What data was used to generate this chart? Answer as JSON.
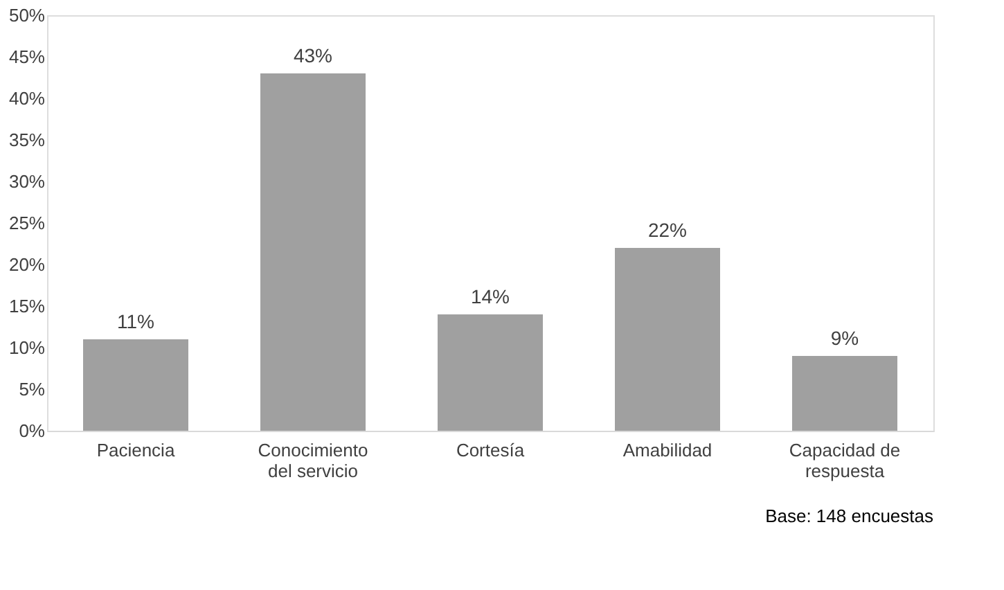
{
  "chart_data": {
    "type": "bar",
    "categories": [
      "Paciencia",
      "Conocimiento del servicio",
      "Cortesía",
      "Amabilidad",
      "Capacidad de respuesta"
    ],
    "values": [
      11,
      43,
      14,
      22,
      9
    ],
    "color": "#a0a0a0",
    "value_labels": [
      "11%",
      "43%",
      "14%",
      "22%",
      "9%"
    ],
    "ylim": [
      0,
      50
    ],
    "yticks": [
      {
        "value": 0,
        "label": "0%"
      },
      {
        "value": 5,
        "label": "5%"
      },
      {
        "value": 10,
        "label": "10%"
      },
      {
        "value": 15,
        "label": "15%"
      },
      {
        "value": 20,
        "label": "20%"
      },
      {
        "value": 25,
        "label": "25%"
      },
      {
        "value": 30,
        "label": "30%"
      },
      {
        "value": 35,
        "label": "35%"
      },
      {
        "value": 40,
        "label": "40%"
      },
      {
        "value": 45,
        "label": "45%"
      },
      {
        "value": 50,
        "label": "50%"
      }
    ],
    "grid": false,
    "annotations": [
      "Base: 148 encuestas"
    ]
  }
}
